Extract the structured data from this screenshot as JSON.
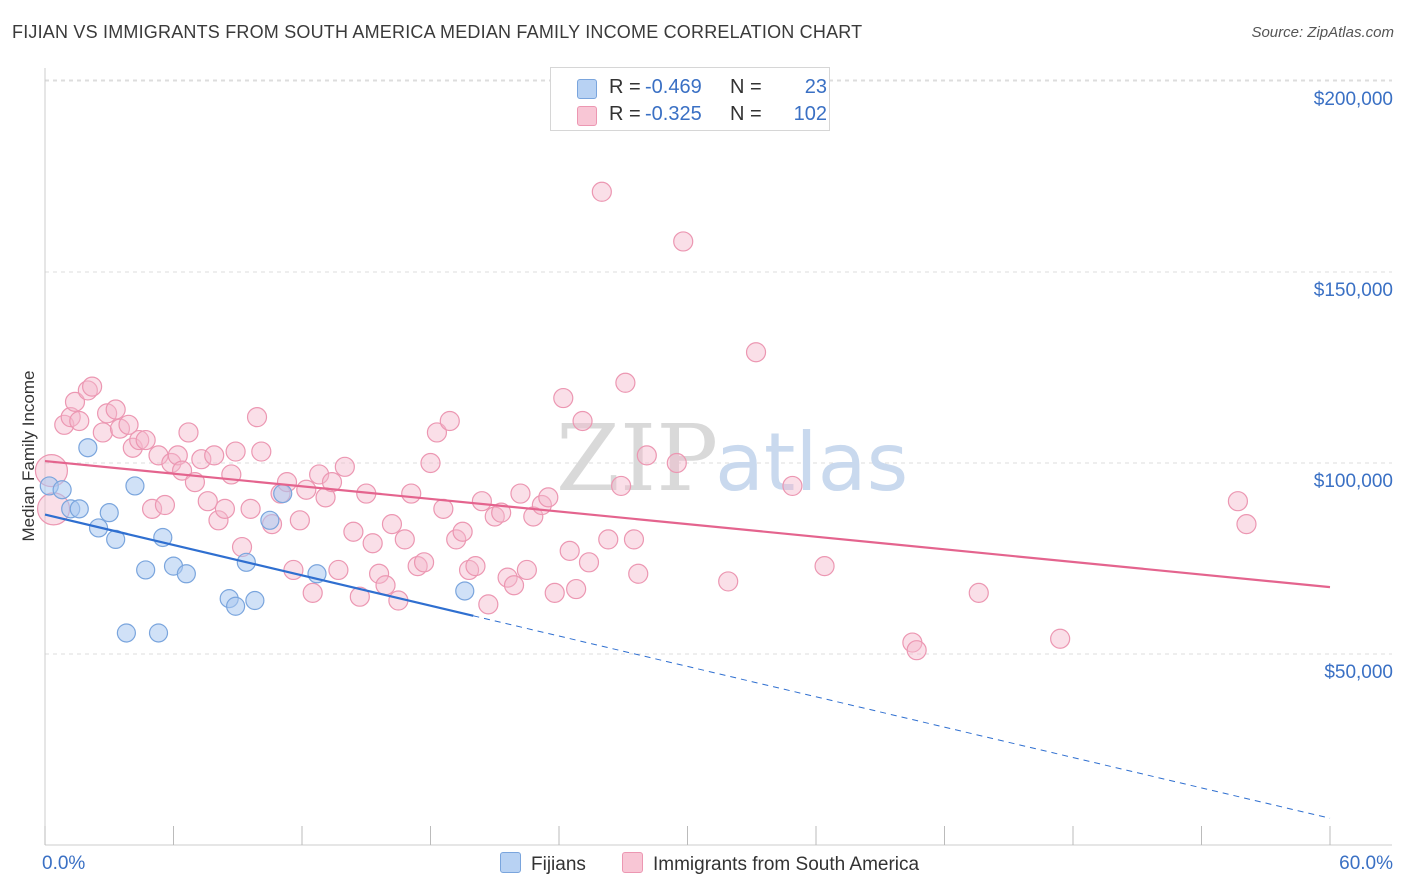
{
  "header": {
    "title": "FIJIAN VS IMMIGRANTS FROM SOUTH AMERICA MEDIAN FAMILY INCOME CORRELATION CHART",
    "source": "Source: ZipAtlas.com"
  },
  "colors": {
    "blue_fill": "#a9c8f0",
    "blue_stroke": "#7aa5dd",
    "blue_line": "#2f6fd0",
    "pink_fill": "#f5b8cb",
    "pink_stroke": "#ec97b2",
    "pink_line": "#e4648e",
    "axis_text": "#3a70c4",
    "grid": "#dddddd"
  },
  "legend": {
    "series1": {
      "r_label": "R =",
      "r_value": "-0.469",
      "n_label": "N =",
      "n_value": "23"
    },
    "series2": {
      "r_label": "R =",
      "r_value": "-0.325",
      "n_label": "N =",
      "n_value": "102"
    }
  },
  "watermark": {
    "zip": "ZIP",
    "atlas": "atlas"
  },
  "chart_data": {
    "type": "scatter",
    "title": "FIJIAN VS IMMIGRANTS FROM SOUTH AMERICA MEDIAN FAMILY INCOME CORRELATION CHART",
    "xlabel": "",
    "ylabel": "Median Family Income",
    "xlim": [
      0,
      60
    ],
    "ylim": [
      0,
      210000
    ],
    "x_tick_labels": [
      "0.0%",
      "60.0%"
    ],
    "y_ticks": [
      50000,
      100000,
      150000,
      200000
    ],
    "y_tick_labels": [
      "$50,000",
      "$100,000",
      "$150,000",
      "$200,000"
    ],
    "series": [
      {
        "name": "Fijians",
        "r": -0.469,
        "n": 23,
        "trend": {
          "x_start": 0,
          "y_start": 86500,
          "x_solid_end": 20,
          "x_end": 60,
          "y_end": 7000
        },
        "points": [
          [
            0.2,
            94000
          ],
          [
            0.8,
            93000
          ],
          [
            1.2,
            88000
          ],
          [
            1.6,
            88000
          ],
          [
            2.0,
            104000
          ],
          [
            2.5,
            83000
          ],
          [
            3.0,
            87000
          ],
          [
            3.3,
            80000
          ],
          [
            3.8,
            55500
          ],
          [
            4.2,
            94000
          ],
          [
            4.7,
            72000
          ],
          [
            5.3,
            55500
          ],
          [
            5.5,
            80500
          ],
          [
            6.0,
            73000
          ],
          [
            6.6,
            71000
          ],
          [
            8.6,
            64500
          ],
          [
            8.9,
            62500
          ],
          [
            9.4,
            74000
          ],
          [
            9.8,
            64000
          ],
          [
            10.5,
            85000
          ],
          [
            11.1,
            92000
          ],
          [
            12.7,
            71000
          ],
          [
            19.6,
            66500
          ]
        ]
      },
      {
        "name": "Immigrants from South America",
        "r": -0.325,
        "n": 102,
        "trend": {
          "x_start": 0,
          "y_start": 100500,
          "x_end": 60,
          "y_end": 67500
        },
        "points": [
          [
            0.3,
            98000
          ],
          [
            0.4,
            88000
          ],
          [
            0.9,
            110000
          ],
          [
            1.2,
            112000
          ],
          [
            1.4,
            116000
          ],
          [
            1.6,
            111000
          ],
          [
            2.0,
            119000
          ],
          [
            2.2,
            120000
          ],
          [
            2.7,
            108000
          ],
          [
            2.9,
            113000
          ],
          [
            3.3,
            114000
          ],
          [
            3.5,
            109000
          ],
          [
            3.9,
            110000
          ],
          [
            4.1,
            104000
          ],
          [
            4.4,
            106000
          ],
          [
            4.7,
            106000
          ],
          [
            5.0,
            88000
          ],
          [
            5.3,
            102000
          ],
          [
            5.6,
            89000
          ],
          [
            5.9,
            100000
          ],
          [
            6.2,
            102000
          ],
          [
            6.4,
            98000
          ],
          [
            6.7,
            108000
          ],
          [
            7.0,
            95000
          ],
          [
            7.3,
            101000
          ],
          [
            7.6,
            90000
          ],
          [
            7.9,
            102000
          ],
          [
            8.1,
            85000
          ],
          [
            8.4,
            88000
          ],
          [
            8.7,
            97000
          ],
          [
            8.9,
            103000
          ],
          [
            9.2,
            78000
          ],
          [
            9.6,
            88000
          ],
          [
            9.9,
            112000
          ],
          [
            10.1,
            103000
          ],
          [
            10.6,
            84000
          ],
          [
            11.0,
            92000
          ],
          [
            11.3,
            95000
          ],
          [
            11.6,
            72000
          ],
          [
            11.9,
            85000
          ],
          [
            12.2,
            93000
          ],
          [
            12.5,
            66000
          ],
          [
            12.8,
            97000
          ],
          [
            13.1,
            91000
          ],
          [
            13.4,
            95000
          ],
          [
            13.7,
            72000
          ],
          [
            14.0,
            99000
          ],
          [
            14.4,
            82000
          ],
          [
            14.7,
            65000
          ],
          [
            15.0,
            92000
          ],
          [
            15.3,
            79000
          ],
          [
            15.6,
            71000
          ],
          [
            15.9,
            68000
          ],
          [
            16.2,
            84000
          ],
          [
            16.5,
            64000
          ],
          [
            16.8,
            80000
          ],
          [
            17.1,
            92000
          ],
          [
            17.4,
            73000
          ],
          [
            17.7,
            74000
          ],
          [
            18.0,
            100000
          ],
          [
            18.3,
            108000
          ],
          [
            18.6,
            88000
          ],
          [
            18.9,
            111000
          ],
          [
            19.2,
            80000
          ],
          [
            19.5,
            82000
          ],
          [
            19.8,
            72000
          ],
          [
            20.1,
            73000
          ],
          [
            20.4,
            90000
          ],
          [
            20.7,
            63000
          ],
          [
            21.0,
            86000
          ],
          [
            21.3,
            87000
          ],
          [
            21.6,
            70000
          ],
          [
            21.9,
            68000
          ],
          [
            22.2,
            92000
          ],
          [
            22.5,
            72000
          ],
          [
            22.8,
            86000
          ],
          [
            23.2,
            89000
          ],
          [
            23.5,
            91000
          ],
          [
            23.8,
            66000
          ],
          [
            24.2,
            117000
          ],
          [
            24.5,
            77000
          ],
          [
            24.8,
            67000
          ],
          [
            25.1,
            111000
          ],
          [
            25.4,
            74000
          ],
          [
            26.0,
            171000
          ],
          [
            26.3,
            80000
          ],
          [
            26.9,
            94000
          ],
          [
            27.1,
            121000
          ],
          [
            27.5,
            80000
          ],
          [
            27.7,
            71000
          ],
          [
            28.1,
            102000
          ],
          [
            29.5,
            100000
          ],
          [
            29.8,
            158000
          ],
          [
            31.9,
            69000
          ],
          [
            33.2,
            129000
          ],
          [
            34.9,
            94000
          ],
          [
            36.4,
            73000
          ],
          [
            40.5,
            53000
          ],
          [
            40.7,
            51000
          ],
          [
            43.6,
            66000
          ],
          [
            47.4,
            54000
          ],
          [
            55.7,
            90000
          ],
          [
            56.1,
            84000
          ]
        ]
      }
    ]
  },
  "bottom_legend": {
    "series1_label": "Fijians",
    "series2_label": "Immigrants from South America"
  }
}
